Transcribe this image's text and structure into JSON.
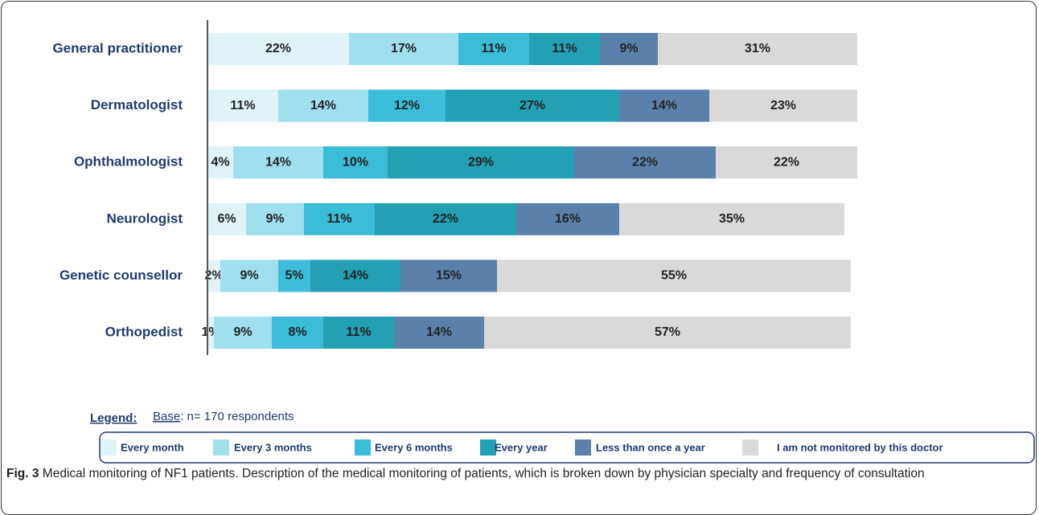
{
  "chart_data": {
    "type": "stacked-barh",
    "categories": [
      "General practitioner",
      "Dermatologist",
      "Ophthalmologist",
      "Neurologist",
      "Genetic counsellor",
      "Orthopedist"
    ],
    "xlim": [
      0,
      100
    ],
    "series": [
      {
        "name": "Every month",
        "color": "#dff3f8",
        "values": [
          22,
          11,
          4,
          6,
          2,
          1
        ],
        "value_labels": [
          "22%",
          "11%",
          "4%",
          "6%",
          "2%",
          "1%"
        ]
      },
      {
        "name": "Every 3 months",
        "color": "#9fdfee",
        "values": [
          17,
          14,
          14,
          9,
          9,
          9
        ],
        "value_labels": [
          "17%",
          "14%",
          "14%",
          "9%",
          "9%",
          "9%"
        ]
      },
      {
        "name": "Every 6 months",
        "color": "#3bbcd8",
        "values": [
          11,
          12,
          10,
          11,
          5,
          8
        ],
        "value_labels": [
          "11%",
          "12%",
          "10%",
          "11%",
          "5%",
          "8%"
        ]
      },
      {
        "name": "Every year",
        "color": "#23a0b4",
        "values": [
          11,
          27,
          29,
          22,
          14,
          11
        ],
        "value_labels": [
          "11%",
          "27%",
          "29%",
          "22%",
          "14%",
          "11%"
        ]
      },
      {
        "name": "Less than once a year",
        "color": "#5b80ab",
        "values": [
          9,
          14,
          22,
          16,
          15,
          14
        ],
        "value_labels": [
          "9%",
          "14%",
          "22%",
          "16%",
          "15%",
          "14%"
        ]
      },
      {
        "name": "I am not monitored by this doctor",
        "color": "#d9d9d9",
        "values": [
          31,
          23,
          22,
          35,
          55,
          57
        ],
        "value_labels": [
          "31%",
          "23%",
          "22%",
          "35%",
          "55%",
          "57%"
        ]
      }
    ],
    "legend_title": "Legend:",
    "base_label": "Base",
    "base_text": ": n= 170 respondents"
  },
  "caption_label": "Fig. 3",
  "caption": "Medical monitoring of NF1 patients. Description of the medical monitoring of patients, which is broken down by physician specialty and frequency of consultation"
}
